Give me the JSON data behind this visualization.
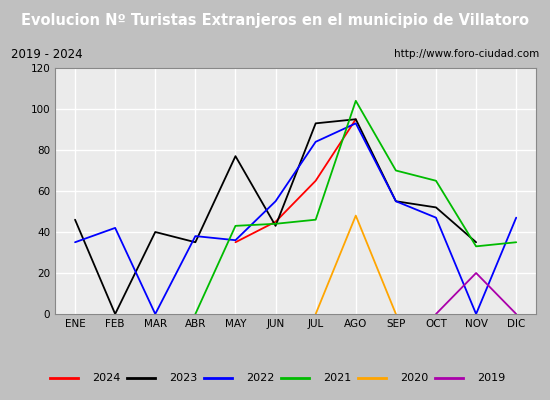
{
  "title": "Evolucion Nº Turistas Extranjeros en el municipio de Villatoro",
  "subtitle_left": "2019 - 2024",
  "subtitle_right": "http://www.foro-ciudad.com",
  "months": [
    "ENE",
    "FEB",
    "MAR",
    "ABR",
    "MAY",
    "JUN",
    "JUL",
    "AGO",
    "SEP",
    "OCT",
    "NOV",
    "DIC"
  ],
  "series": {
    "2024": [
      null,
      null,
      null,
      null,
      35,
      45,
      65,
      95,
      null,
      null,
      null,
      null
    ],
    "2023": [
      46,
      0,
      40,
      35,
      77,
      43,
      93,
      95,
      55,
      52,
      35,
      null
    ],
    "2022": [
      35,
      42,
      0,
      38,
      36,
      55,
      84,
      93,
      55,
      47,
      0,
      47
    ],
    "2021": [
      null,
      null,
      null,
      0,
      43,
      44,
      46,
      104,
      70,
      65,
      33,
      35
    ],
    "2020": [
      null,
      null,
      null,
      null,
      null,
      null,
      0,
      48,
      0,
      null,
      null,
      null
    ],
    "2019": [
      null,
      null,
      null,
      null,
      null,
      null,
      null,
      null,
      null,
      0,
      20,
      0
    ]
  },
  "colors": {
    "2024": "#ff0000",
    "2023": "#000000",
    "2022": "#0000ff",
    "2021": "#00bb00",
    "2020": "#ffa500",
    "2019": "#aa00aa"
  },
  "ylim": [
    0,
    120
  ],
  "yticks": [
    0,
    20,
    40,
    60,
    80,
    100,
    120
  ],
  "title_bg": "#4472c4",
  "title_color": "#ffffff",
  "subtitle_bg": "#e0e0e0",
  "plot_bg": "#ebebeb",
  "grid_color": "#ffffff",
  "border_color": "#888888",
  "fig_bg": "#c0c0c0"
}
